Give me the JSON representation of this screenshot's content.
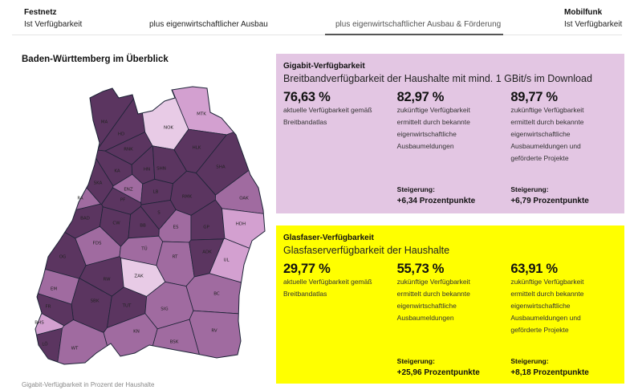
{
  "tabs": {
    "festnetz_group": "Festnetz",
    "mobilfunk_group": "Mobilfunk",
    "items": [
      {
        "label": "Ist Verfügbarkeit",
        "active": false
      },
      {
        "label": "plus eigenwirtschaftlicher Ausbau",
        "active": false
      },
      {
        "label": "plus eigenwirtschaftlicher Ausbau & Förderung",
        "active": true
      },
      {
        "label": "Ist Verfügbarkeit",
        "active": false
      }
    ]
  },
  "map": {
    "title": "Baden-Württemberg im Überblick",
    "caption": "Gigabit-Verfügbarkeit in Prozent der Haushalte",
    "colors": {
      "dark": "#5b3560",
      "medium": "#a06ba0",
      "light": "#d3a0d0",
      "verylight": "#e8cbe6",
      "border": "#1c2336"
    },
    "districts": [
      {
        "id": "MA",
        "level": "dark"
      },
      {
        "id": "HD",
        "level": "dark"
      },
      {
        "id": "RNK",
        "level": "dark"
      },
      {
        "id": "NOK",
        "level": "verylight"
      },
      {
        "id": "MTK",
        "level": "light"
      },
      {
        "id": "HLK",
        "level": "dark"
      },
      {
        "id": "SHA",
        "level": "dark"
      },
      {
        "id": "KA",
        "level": "dark"
      },
      {
        "id": "HN",
        "level": "dark"
      },
      {
        "id": "SHN",
        "level": "dark"
      },
      {
        "id": "SKA",
        "level": "dark"
      },
      {
        "id": "ENZ",
        "level": "medium"
      },
      {
        "id": "PF",
        "level": "dark"
      },
      {
        "id": "LB",
        "level": "dark"
      },
      {
        "id": "RMK",
        "level": "dark"
      },
      {
        "id": "OAK",
        "level": "medium"
      },
      {
        "id": "RA",
        "level": "medium"
      },
      {
        "id": "BAD",
        "level": "dark"
      },
      {
        "id": "CW",
        "level": "dark"
      },
      {
        "id": "BB",
        "level": "dark"
      },
      {
        "id": "S",
        "level": "dark"
      },
      {
        "id": "ES",
        "level": "medium"
      },
      {
        "id": "GP",
        "level": "dark"
      },
      {
        "id": "HDH",
        "level": "light"
      },
      {
        "id": "FDS",
        "level": "medium"
      },
      {
        "id": "TÜ",
        "level": "medium"
      },
      {
        "id": "RT",
        "level": "medium"
      },
      {
        "id": "OG",
        "level": "dark"
      },
      {
        "id": "ADK",
        "level": "dark"
      },
      {
        "id": "UL",
        "level": "light"
      },
      {
        "id": "RW",
        "level": "dark"
      },
      {
        "id": "ZAK",
        "level": "verylight"
      },
      {
        "id": "EM",
        "level": "medium"
      },
      {
        "id": "BC",
        "level": "medium"
      },
      {
        "id": "SBK",
        "level": "dark"
      },
      {
        "id": "TUT",
        "level": "dark"
      },
      {
        "id": "FR",
        "level": "dark"
      },
      {
        "id": "SIG",
        "level": "medium"
      },
      {
        "id": "BHS",
        "level": "light"
      },
      {
        "id": "KN",
        "level": "medium"
      },
      {
        "id": "RV",
        "level": "medium"
      },
      {
        "id": "LÖ",
        "level": "dark"
      },
      {
        "id": "WT",
        "level": "medium"
      },
      {
        "id": "BSK",
        "level": "medium"
      }
    ]
  },
  "gigabit": {
    "title": "Gigabit-Verfügbarkeit",
    "subtitle": "Breitbandverfügbarkeit der Haushalte mit mind. 1 GBit/s im Download",
    "bg": "#e3c6e3",
    "cols": [
      {
        "value": "76,63 %",
        "desc": [
          "aktuelle Verfügbarkeit gemäß",
          "Breitbandatlas"
        ],
        "st_label": "",
        "st_value": ""
      },
      {
        "value": "82,97 %",
        "desc": [
          "zukünftige Verfügbarkeit",
          "ermittelt durch bekannte",
          "eigenwirtschaftliche",
          "Ausbaumeldungen"
        ],
        "st_label": "Steigerung:",
        "st_value": "+6,34 Prozentpunkte"
      },
      {
        "value": "89,77 %",
        "desc": [
          "zukünftige Verfügbarkeit",
          "ermittelt durch bekannte",
          "eigenwirtschaftliche",
          "Ausbaumeldungen und",
          "geförderte Projekte"
        ],
        "st_label": "Steigerung:",
        "st_value": "+6,79 Prozentpunkte"
      }
    ]
  },
  "glasfaser": {
    "title": "Glasfaser-Verfügbarkeit",
    "subtitle": "Glasfaserverfügbarkeit der Haushalte",
    "bg": "#ffff00",
    "cols": [
      {
        "value": "29,77 %",
        "desc": [
          "aktuelle Verfügbarkeit gemäß",
          "Breitbandatlas"
        ],
        "st_label": "",
        "st_value": ""
      },
      {
        "value": "55,73 %",
        "desc": [
          "zukünftige Verfügbarkeit",
          "ermittelt durch bekannte",
          "eigenwirtschaftliche",
          "Ausbaumeldungen"
        ],
        "st_label": "Steigerung:",
        "st_value": "+25,96 Prozentpunkte"
      },
      {
        "value": "63,91 %",
        "desc": [
          "zukünftige Verfügbarkeit",
          "ermittelt durch bekannte",
          "eigenwirtschaftliche",
          "Ausbaumeldungen und",
          "geförderte Projekte"
        ],
        "st_label": "Steigerung:",
        "st_value": "+8,18 Prozentpunkte"
      }
    ]
  }
}
